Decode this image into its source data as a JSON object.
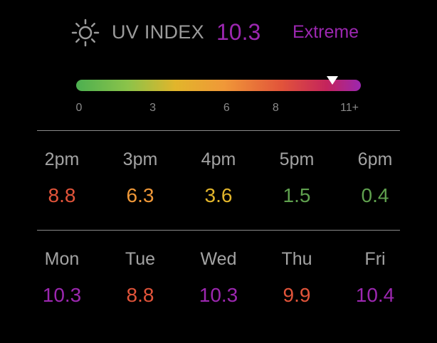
{
  "header": {
    "icon": "sun-icon",
    "title": "UV INDEX",
    "value": "10.3",
    "level": "Extreme",
    "value_color": "#9c27b0",
    "level_color": "#9c27b0"
  },
  "scale": {
    "marker_value": 10.3,
    "scale_min": 0,
    "scale_max": 11,
    "ticks": [
      {
        "label": "0",
        "value": 0
      },
      {
        "label": "3",
        "value": 3
      },
      {
        "label": "6",
        "value": 6
      },
      {
        "label": "8",
        "value": 8
      },
      {
        "label": "11+",
        "value": 11
      }
    ]
  },
  "hourly": [
    {
      "label": "2pm",
      "value": "8.8",
      "color": "#e2543a"
    },
    {
      "label": "3pm",
      "value": "6.3",
      "color": "#f09838"
    },
    {
      "label": "4pm",
      "value": "3.6",
      "color": "#e2b52b"
    },
    {
      "label": "5pm",
      "value": "1.5",
      "color": "#5fa04e"
    },
    {
      "label": "6pm",
      "value": "0.4",
      "color": "#5fa04e"
    }
  ],
  "daily": [
    {
      "label": "Mon",
      "value": "10.3",
      "color": "#9c27b0"
    },
    {
      "label": "Tue",
      "value": "8.8",
      "color": "#e2543a"
    },
    {
      "label": "Wed",
      "value": "10.3",
      "color": "#9c27b0"
    },
    {
      "label": "Thu",
      "value": "9.9",
      "color": "#e2543a"
    },
    {
      "label": "Fri",
      "value": "10.4",
      "color": "#9c27b0"
    }
  ]
}
